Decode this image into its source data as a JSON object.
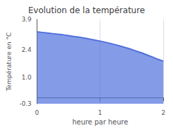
{
  "chart_data": {
    "type": "line",
    "title": "Evolution de la température",
    "xlabel": "heure par heure",
    "ylabel": "Température en °C",
    "x": [
      0.0,
      0.083,
      0.167,
      0.25,
      0.333,
      0.417,
      0.5,
      0.583,
      0.667,
      0.75,
      0.833,
      0.917,
      1.0,
      1.083,
      1.167,
      1.25,
      1.333,
      1.417,
      1.5,
      1.583,
      1.667,
      1.75,
      1.833,
      1.917,
      2.0
    ],
    "values": [
      3.28,
      3.25,
      3.22,
      3.19,
      3.16,
      3.13,
      3.09,
      3.05,
      3.01,
      2.97,
      2.92,
      2.87,
      2.82,
      2.76,
      2.7,
      2.63,
      2.56,
      2.48,
      2.4,
      2.31,
      2.22,
      2.12,
      2.02,
      1.91,
      1.82
    ],
    "fill_baseline": -0.3,
    "xlim": [
      0,
      2
    ],
    "xticks": [
      0,
      1,
      2
    ],
    "ylim": [
      -0.3,
      3.9
    ],
    "yticks": [
      -0.3,
      {
        "value": 1.0,
        "label": "1.0"
      },
      2.4,
      3.9
    ],
    "grid": "x"
  }
}
